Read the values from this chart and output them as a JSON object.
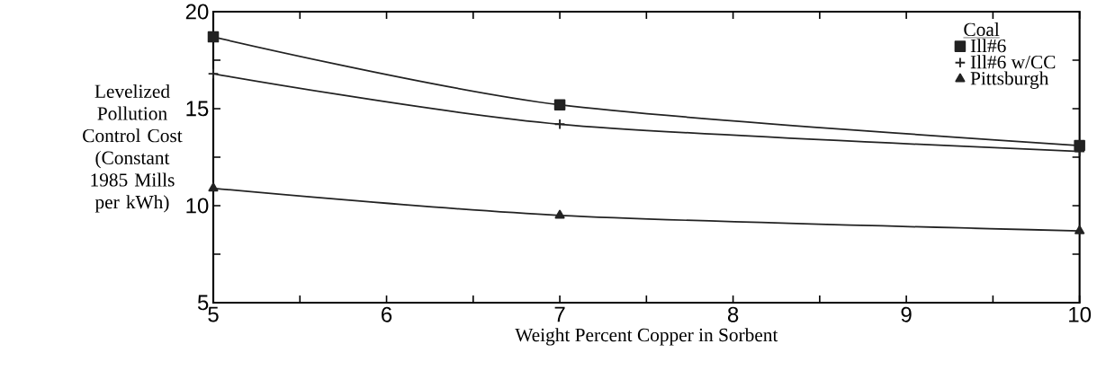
{
  "chart_data": {
    "type": "line",
    "xlabel": "Weight Percent Copper in Sorbent",
    "ylabel": "Levelized Pollution Control Cost (Constant 1985 Mills per kWh)",
    "legend_title": "Coal",
    "legend": "top right",
    "grid": false,
    "xlim": [
      5,
      10
    ],
    "ylim": [
      5,
      20
    ],
    "xticks": [
      5,
      {
        "value": 5.5,
        "label": null
      },
      6,
      {
        "value": 6.5,
        "label": null
      },
      7,
      {
        "value": 7.5,
        "label": null
      },
      8,
      {
        "value": 8.5,
        "label": null
      },
      9,
      {
        "value": 9.5,
        "label": null
      },
      10
    ],
    "yticks": [
      5,
      {
        "value": 7.5,
        "label": null
      },
      10,
      {
        "value": 12.5,
        "label": null
      },
      15,
      {
        "value": 17.5,
        "label": null
      },
      20
    ],
    "series": [
      {
        "name": "Ill#6",
        "color": "#222222",
        "marker": "square",
        "x": [
          5,
          7,
          10
        ],
        "values": [
          18.7,
          15.2,
          13.1
        ]
      },
      {
        "name": "Ill#6 w/CC",
        "color": "#222222",
        "marker": "cross",
        "x": [
          5,
          7,
          10
        ],
        "values": [
          16.8,
          14.2,
          12.8
        ]
      },
      {
        "name": "Pittsburgh",
        "color": "#222222",
        "marker": "triangle",
        "x": [
          5,
          7,
          10
        ],
        "values": [
          10.9,
          9.5,
          8.7
        ]
      }
    ]
  }
}
